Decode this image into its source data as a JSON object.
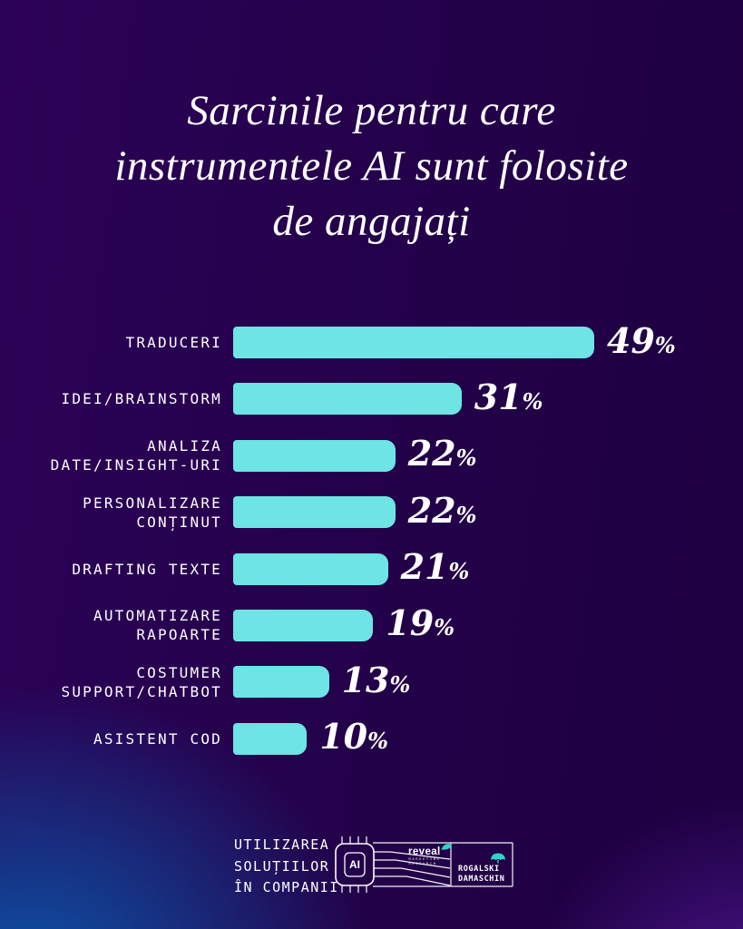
{
  "title": {
    "lines": [
      "Sarcinile pentru care",
      "instrumentele AI sunt folosite",
      "de angajați"
    ]
  },
  "chart_data": {
    "type": "bar",
    "orientation": "horizontal",
    "title": "Sarcinile pentru care instrumentele AI sunt folosite de angajați",
    "categories": [
      "TRADUCERI",
      "IDEI/BRAINSTORM",
      "ANALIZA DATE/INSIGHT-URI",
      "PERSONALIZARE CONȚINUT",
      "DRAFTING TEXTE",
      "AUTOMATIZARE RAPOARTE",
      "COSTUMER SUPPORT/CHATBOT",
      "ASISTENT COD"
    ],
    "values": [
      49,
      31,
      22,
      22,
      21,
      19,
      13,
      10
    ],
    "value_suffix": "%",
    "xlim": [
      0,
      49
    ],
    "grid": false,
    "legend": false,
    "rows": [
      {
        "label_lines": [
          "TRADUCERI"
        ],
        "value": 49
      },
      {
        "label_lines": [
          "IDEI/BRAINSTORM"
        ],
        "value": 31
      },
      {
        "label_lines": [
          "ANALIZA",
          "DATE/INSIGHT-URI"
        ],
        "value": 22
      },
      {
        "label_lines": [
          "PERSONALIZARE",
          "CONȚINUT"
        ],
        "value": 22
      },
      {
        "label_lines": [
          "DRAFTING TEXTE"
        ],
        "value": 21
      },
      {
        "label_lines": [
          "AUTOMATIZARE",
          "RAPOARTE"
        ],
        "value": 19
      },
      {
        "label_lines": [
          "COSTUMER",
          "SUPPORT/CHATBOT"
        ],
        "value": 13
      },
      {
        "label_lines": [
          "ASISTENT COD"
        ],
        "value": 10
      }
    ]
  },
  "footer": {
    "caption_lines": [
      "UTILIZAREA",
      "SOLUȚIILOR",
      "ÎN COMPANII"
    ],
    "ai_chip_label": "AI",
    "reveal_logo": {
      "name": "reveal",
      "tagline_lines": [
        "MARKETING",
        "RESEARCH"
      ]
    },
    "rogalski_logo": {
      "line1": "ROGALSKI",
      "line2": "DAMASCHIN"
    }
  },
  "colors": {
    "bar_color": "#6ee4e4",
    "data_label_color": "#ffffff",
    "text_color": "#ffffff",
    "glow_blue": "#0a55a8",
    "accent_teal": "#2bd4c8",
    "background_dark": "#1e0041"
  }
}
